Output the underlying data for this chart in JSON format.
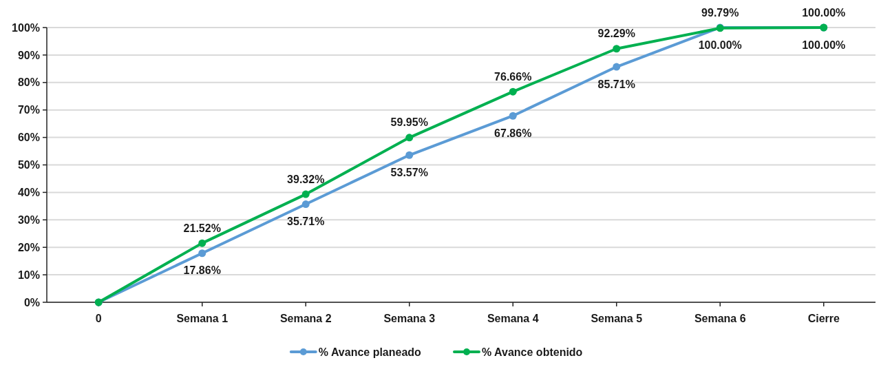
{
  "chart_data": {
    "type": "line",
    "categories": [
      "0",
      "Semana 1",
      "Semana 2",
      "Semana 3",
      "Semana 4",
      "Semana 5",
      "Semana 6",
      "Cierre"
    ],
    "series": [
      {
        "name": "% Avance planeado",
        "color": "#5b9bd5",
        "values": [
          0,
          17.86,
          35.71,
          53.57,
          67.86,
          85.71,
          100,
          100
        ],
        "value_labels": [
          null,
          "17.86%",
          "35.71%",
          "53.57%",
          "67.86%",
          "85.71%",
          "100.00%",
          "100.00%"
        ]
      },
      {
        "name": "% Avance obtenido",
        "color": "#00b050",
        "values": [
          0,
          21.52,
          39.32,
          59.95,
          76.66,
          92.29,
          99.79,
          100
        ],
        "value_labels": [
          null,
          "21.52%",
          "39.32%",
          "59.95%",
          "76.66%",
          "92.29%",
          "99.79%",
          "100.00%"
        ]
      }
    ],
    "ylim": [
      0,
      100
    ],
    "yticks": [
      {
        "value": 0,
        "label": "0%"
      },
      {
        "value": 10,
        "label": "10%"
      },
      {
        "value": 20,
        "label": "20%"
      },
      {
        "value": 30,
        "label": "30%"
      },
      {
        "value": 40,
        "label": "40%"
      },
      {
        "value": 50,
        "label": "50%"
      },
      {
        "value": 60,
        "label": "60%"
      },
      {
        "value": 70,
        "label": "70%"
      },
      {
        "value": 80,
        "label": "80%"
      },
      {
        "value": 90,
        "label": "90%"
      },
      {
        "value": 100,
        "label": "100%"
      }
    ],
    "grid": "y",
    "legend": "bottom",
    "marker": "circle",
    "line_style": "solid"
  }
}
